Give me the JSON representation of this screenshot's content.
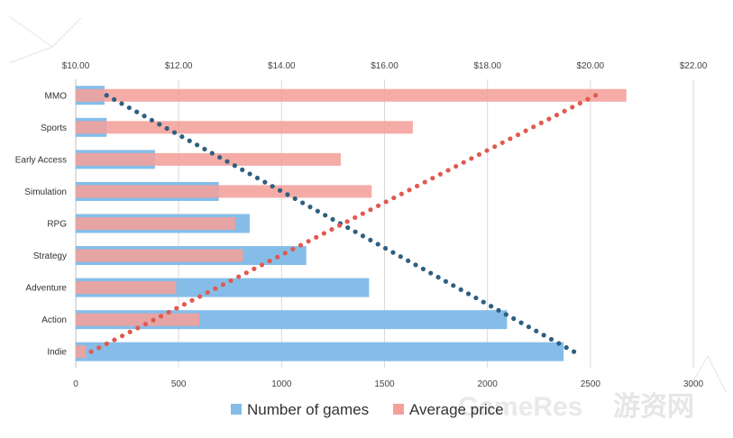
{
  "chart_data": {
    "type": "bar",
    "orientation": "horizontal",
    "categories": [
      "MMO",
      "Sports",
      "Early Access",
      "Simulation",
      "RPG",
      "Strategy",
      "Adventure",
      "Action",
      "Indie"
    ],
    "series": [
      {
        "name": "Number of games",
        "axis": "bottom",
        "color": "#85bde8",
        "values": [
          140,
          150,
          385,
          695,
          845,
          1120,
          1425,
          2095,
          2370
        ]
      },
      {
        "name": "Average price",
        "axis": "top",
        "color": "#f4a09a",
        "values": [
          20.7,
          16.55,
          15.15,
          15.75,
          13.1,
          13.25,
          11.95,
          12.4,
          10.2
        ]
      }
    ],
    "trendlines": [
      {
        "series": "Number of games",
        "style": "dotted",
        "color": "#2e5f80",
        "from": [
          150,
          "MMO"
        ],
        "to": [
          2420,
          "Indie"
        ]
      },
      {
        "series": "Average price",
        "style": "dotted",
        "color": "#e05a4e",
        "from": [
          10.3,
          "Indie"
        ],
        "to": [
          20.1,
          "MMO"
        ]
      }
    ],
    "x_bottom": {
      "min": 0,
      "max": 3000,
      "ticks": [
        0,
        500,
        1000,
        1500,
        2000,
        2500,
        3000
      ]
    },
    "x_top": {
      "min": 10,
      "max": 22,
      "ticks": [
        "$10.00",
        "$12.00",
        "$14.00",
        "$16.00",
        "$18.00",
        "$20.00",
        "$22.00"
      ]
    },
    "grid": true,
    "legend": "bottom"
  },
  "watermark": {
    "latin": "GameRes",
    "cn": "游资网"
  }
}
